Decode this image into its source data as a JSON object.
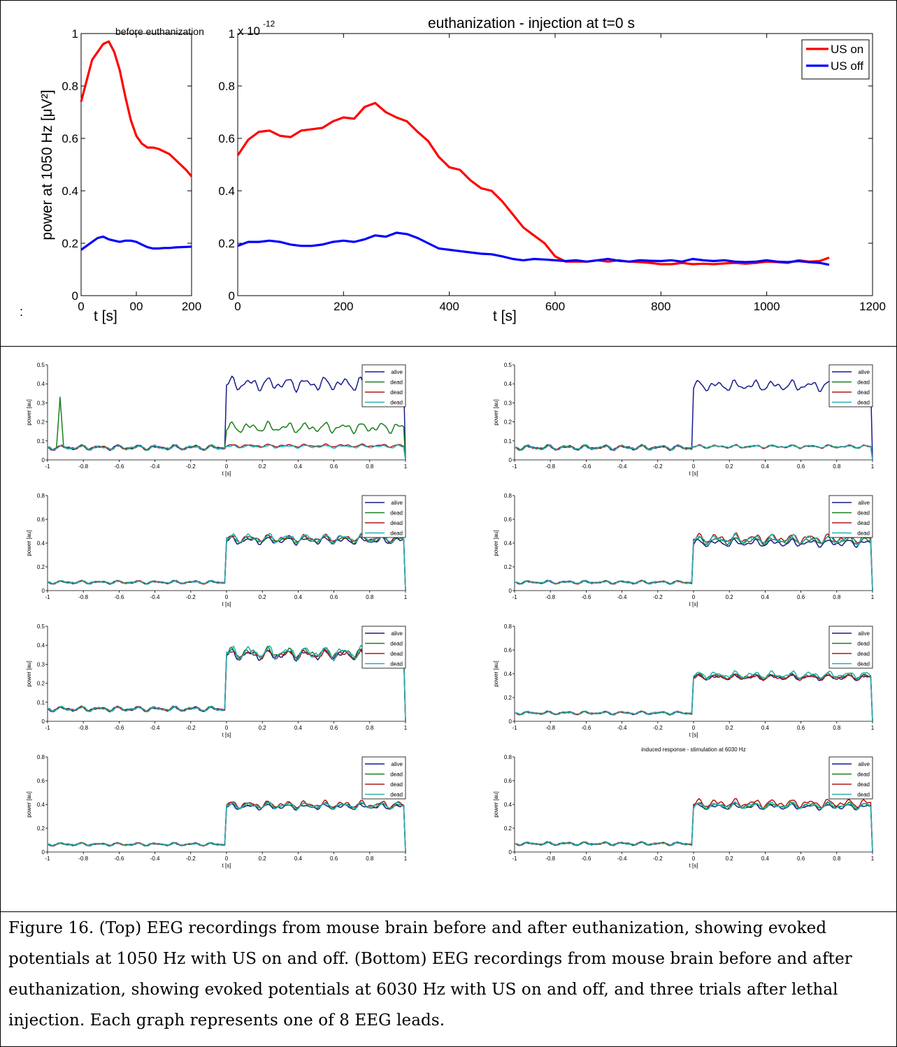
{
  "caption": "Figure 16. (Top) EEG recordings from mouse brain before and after euthanization, showing evoked potentials at 1050 Hz with US on and off. (Bottom) EEG recordings from mouse brain before and after euthanization, showing evoked potentials at 6030 Hz with US on and off, and three trials after lethal injection. Each graph represents one of 8 EEG leads.",
  "colors": {
    "us_on": "#ff0000",
    "us_off": "#0000ff",
    "alive": "#1a1a8c",
    "dead_green": "#1e7d1e",
    "dead_red": "#b01818",
    "dead_cyan": "#20b0b8"
  },
  "chart_data": [
    {
      "type": "line",
      "title": "before euthanization",
      "ylabel": "power at 1050 Hz [μV²]",
      "xlabel": "t [s]",
      "xlim": [
        0,
        200
      ],
      "ylim": [
        0,
        1
      ],
      "xticks": [
        "0",
        "00",
        "200"
      ],
      "yticks": [
        "0",
        "0.2",
        "0.4",
        "0.6",
        "0.8",
        "1"
      ],
      "exponent_label": "x 10",
      "exponent_power": "-12",
      "stray_mark": ":",
      "series": [
        {
          "color": "#ff0000",
          "x": [
            0,
            10,
            20,
            30,
            40,
            50,
            60,
            70,
            80,
            90,
            100,
            110,
            120,
            130,
            140,
            150,
            160,
            170,
            180,
            190,
            200
          ],
          "y": [
            0.74,
            0.82,
            0.9,
            0.93,
            0.96,
            0.97,
            0.93,
            0.86,
            0.76,
            0.67,
            0.61,
            0.58,
            0.565,
            0.565,
            0.56,
            0.55,
            0.54,
            0.52,
            0.5,
            0.48,
            0.455
          ]
        },
        {
          "color": "#0000ff",
          "x": [
            0,
            10,
            20,
            30,
            40,
            50,
            60,
            70,
            80,
            90,
            100,
            110,
            120,
            130,
            140,
            150,
            160,
            170,
            180,
            190,
            200
          ],
          "y": [
            0.175,
            0.19,
            0.205,
            0.22,
            0.225,
            0.215,
            0.21,
            0.205,
            0.21,
            0.21,
            0.205,
            0.195,
            0.185,
            0.18,
            0.18,
            0.182,
            0.182,
            0.184,
            0.185,
            0.186,
            0.187
          ]
        }
      ]
    },
    {
      "type": "line",
      "title": "euthanization - injection at t=0 s",
      "xlabel": "t [s]",
      "xlim": [
        0,
        1200
      ],
      "ylim": [
        0,
        1
      ],
      "xticks": [
        "0",
        "200",
        "400",
        "600",
        "800",
        "1000",
        "1200"
      ],
      "yticks": [
        "0",
        "0.2",
        "0.4",
        "0.6",
        "0.8",
        "1"
      ],
      "legend": "top-right",
      "series": [
        {
          "name": "US on",
          "color": "#ff0000",
          "x": [
            0,
            20,
            40,
            60,
            80,
            100,
            120,
            140,
            160,
            180,
            200,
            220,
            240,
            260,
            280,
            300,
            320,
            340,
            360,
            380,
            400,
            420,
            440,
            460,
            480,
            500,
            520,
            540,
            560,
            580,
            600,
            620,
            640,
            660,
            680,
            700,
            720,
            740,
            760,
            780,
            800,
            820,
            840,
            860,
            880,
            900,
            920,
            940,
            960,
            980,
            1000,
            1020,
            1040,
            1060,
            1080,
            1100,
            1118
          ],
          "y": [
            0.535,
            0.595,
            0.625,
            0.63,
            0.61,
            0.605,
            0.63,
            0.635,
            0.64,
            0.665,
            0.68,
            0.675,
            0.72,
            0.735,
            0.7,
            0.68,
            0.665,
            0.625,
            0.59,
            0.53,
            0.49,
            0.48,
            0.44,
            0.41,
            0.4,
            0.36,
            0.31,
            0.26,
            0.23,
            0.2,
            0.15,
            0.13,
            0.13,
            0.13,
            0.135,
            0.13,
            0.135,
            0.13,
            0.128,
            0.125,
            0.12,
            0.12,
            0.125,
            0.12,
            0.122,
            0.12,
            0.123,
            0.125,
            0.122,
            0.125,
            0.13,
            0.128,
            0.125,
            0.135,
            0.13,
            0.132,
            0.145
          ]
        },
        {
          "name": "US off",
          "color": "#0000ff",
          "x": [
            0,
            20,
            40,
            60,
            80,
            100,
            120,
            140,
            160,
            180,
            200,
            220,
            240,
            260,
            280,
            300,
            320,
            340,
            360,
            380,
            400,
            420,
            440,
            460,
            480,
            500,
            520,
            540,
            560,
            580,
            600,
            620,
            640,
            660,
            680,
            700,
            720,
            740,
            760,
            780,
            800,
            820,
            840,
            860,
            880,
            900,
            920,
            940,
            960,
            980,
            1000,
            1020,
            1040,
            1060,
            1080,
            1100,
            1118
          ],
          "y": [
            0.19,
            0.205,
            0.205,
            0.21,
            0.205,
            0.195,
            0.19,
            0.19,
            0.195,
            0.205,
            0.21,
            0.205,
            0.215,
            0.23,
            0.225,
            0.24,
            0.235,
            0.22,
            0.2,
            0.18,
            0.175,
            0.17,
            0.165,
            0.16,
            0.158,
            0.15,
            0.14,
            0.135,
            0.14,
            0.138,
            0.135,
            0.132,
            0.135,
            0.13,
            0.135,
            0.14,
            0.133,
            0.13,
            0.135,
            0.133,
            0.132,
            0.135,
            0.13,
            0.14,
            0.135,
            0.132,
            0.135,
            0.13,
            0.128,
            0.13,
            0.135,
            0.13,
            0.128,
            0.132,
            0.128,
            0.125,
            0.118
          ]
        }
      ]
    },
    {
      "type": "line",
      "xlabel": "t [s]",
      "ylabel": "power [au]",
      "xlim": [
        -1,
        1
      ],
      "ylim": [
        0,
        0.5
      ],
      "yticks": [
        "0",
        "0.1",
        "0.2",
        "0.3",
        "0.4",
        "0.5"
      ],
      "xticks": [
        "-1",
        "-0.8",
        "-0.6",
        "-0.4",
        "-0.2",
        "0",
        "0.2",
        "0.4",
        "0.6",
        "0.8",
        "1"
      ],
      "legend": "top-right",
      "series": [
        {
          "name": "alive",
          "color": "#1a1a8c",
          "baseline": 0.065,
          "plateau": 0.4,
          "amp": 0.045
        },
        {
          "name": "dead",
          "color": "#1e7d1e",
          "baseline": 0.065,
          "plateau": 0.17,
          "amp": 0.035,
          "spike": [
            -0.93,
            0.33
          ]
        },
        {
          "name": "dead",
          "color": "#b01818",
          "baseline": 0.065,
          "plateau": 0.075,
          "amp": 0.01
        },
        {
          "name": "dead",
          "color": "#20b0b8",
          "baseline": 0.065,
          "plateau": 0.07,
          "amp": 0.01
        }
      ]
    },
    {
      "type": "line",
      "xlabel": "t [s]",
      "ylabel": "power [au]",
      "xlim": [
        -1,
        1
      ],
      "ylim": [
        0,
        0.5
      ],
      "yticks": [
        "0",
        "0.1",
        "0.2",
        "0.3",
        "0.4",
        "0.5"
      ],
      "xticks": [
        "-1",
        "-0.8",
        "-0.6",
        "-0.4",
        "-0.2",
        "0",
        "0.2",
        "0.4",
        "0.6",
        "0.8",
        "1"
      ],
      "legend": "top-right",
      "series": [
        {
          "name": "alive",
          "color": "#1a1a8c",
          "baseline": 0.065,
          "plateau": 0.39,
          "amp": 0.035
        },
        {
          "name": "dead",
          "color": "#1e7d1e",
          "baseline": 0.065,
          "plateau": 0.07,
          "amp": 0.01
        },
        {
          "name": "dead",
          "color": "#b01818",
          "baseline": 0.065,
          "plateau": 0.07,
          "amp": 0.012
        },
        {
          "name": "dead",
          "color": "#20b0b8",
          "baseline": 0.065,
          "plateau": 0.07,
          "amp": 0.01
        }
      ]
    },
    {
      "type": "line",
      "xlabel": "t [s]",
      "ylabel": "power [au]",
      "xlim": [
        -1,
        1
      ],
      "ylim": [
        0,
        0.8
      ],
      "yticks": [
        "0",
        "0.2",
        "0.4",
        "0.6",
        "0.8"
      ],
      "xticks": [
        "-1",
        "-0.8",
        "-0.6",
        "-0.4",
        "-0.2",
        "0",
        "0.2",
        "0.4",
        "0.6",
        "0.8",
        "1"
      ],
      "legend": "top-right",
      "series": [
        {
          "name": "alive",
          "color": "#1a1a8c",
          "baseline": 0.07,
          "plateau": 0.42,
          "amp": 0.04
        },
        {
          "name": "dead",
          "color": "#1e7d1e",
          "baseline": 0.07,
          "plateau": 0.43,
          "amp": 0.04
        },
        {
          "name": "dead",
          "color": "#b01818",
          "baseline": 0.07,
          "plateau": 0.44,
          "amp": 0.04
        },
        {
          "name": "dead",
          "color": "#20b0b8",
          "baseline": 0.07,
          "plateau": 0.44,
          "amp": 0.05
        }
      ]
    },
    {
      "type": "line",
      "xlabel": "t [s]",
      "ylabel": "power [au]",
      "xlim": [
        -1,
        1
      ],
      "ylim": [
        0,
        0.8
      ],
      "yticks": [
        "0",
        "0.2",
        "0.4",
        "0.6",
        "0.8"
      ],
      "xticks": [
        "-1",
        "-0.8",
        "-0.6",
        "-0.4",
        "-0.2",
        "0",
        "0.2",
        "0.4",
        "0.6",
        "0.8",
        "1"
      ],
      "legend": "top-right",
      "series": [
        {
          "name": "alive",
          "color": "#1a1a8c",
          "baseline": 0.07,
          "plateau": 0.4,
          "amp": 0.04
        },
        {
          "name": "dead",
          "color": "#1e7d1e",
          "baseline": 0.07,
          "plateau": 0.42,
          "amp": 0.04
        },
        {
          "name": "dead",
          "color": "#b01818",
          "baseline": 0.07,
          "plateau": 0.44,
          "amp": 0.05
        },
        {
          "name": "dead",
          "color": "#20b0b8",
          "baseline": 0.07,
          "plateau": 0.43,
          "amp": 0.05
        }
      ]
    },
    {
      "type": "line",
      "xlabel": "t [s]",
      "ylabel": "power [au]",
      "xlim": [
        -1,
        1
      ],
      "ylim": [
        0,
        0.5
      ],
      "yticks": [
        "0",
        "0.1",
        "0.2",
        "0.3",
        "0.4",
        "0.5"
      ],
      "xticks": [
        "-1",
        "-0.8",
        "-0.6",
        "-0.4",
        "-0.2",
        "0",
        "0.2",
        "0.4",
        "0.6",
        "0.8",
        "1"
      ],
      "legend": "top-right",
      "series": [
        {
          "name": "alive",
          "color": "#1a1a8c",
          "baseline": 0.065,
          "plateau": 0.35,
          "amp": 0.035
        },
        {
          "name": "dead",
          "color": "#1e7d1e",
          "baseline": 0.065,
          "plateau": 0.36,
          "amp": 0.035
        },
        {
          "name": "dead",
          "color": "#b01818",
          "baseline": 0.065,
          "plateau": 0.35,
          "amp": 0.03
        },
        {
          "name": "dead",
          "color": "#20b0b8",
          "baseline": 0.065,
          "plateau": 0.36,
          "amp": 0.045
        }
      ]
    },
    {
      "type": "line",
      "xlabel": "t [s]",
      "ylabel": "power [au]",
      "xlim": [
        -1,
        1
      ],
      "ylim": [
        0,
        0.8
      ],
      "yticks": [
        "0",
        "0.2",
        "0.4",
        "0.6",
        "0.8"
      ],
      "xticks": [
        "-1",
        "-0.8",
        "-0.6",
        "-0.4",
        "-0.2",
        "0",
        "0.2",
        "0.4",
        "0.6",
        "0.8",
        "1"
      ],
      "legend": "top-right",
      "series": [
        {
          "name": "alive",
          "color": "#1a1a8c",
          "baseline": 0.07,
          "plateau": 0.37,
          "amp": 0.03
        },
        {
          "name": "dead",
          "color": "#1e7d1e",
          "baseline": 0.07,
          "plateau": 0.38,
          "amp": 0.03
        },
        {
          "name": "dead",
          "color": "#b01818",
          "baseline": 0.07,
          "plateau": 0.37,
          "amp": 0.03
        },
        {
          "name": "dead",
          "color": "#20b0b8",
          "baseline": 0.07,
          "plateau": 0.39,
          "amp": 0.04
        }
      ]
    },
    {
      "type": "line",
      "xlabel": "t [s]",
      "ylabel": "power [au]",
      "xlim": [
        -1,
        1
      ],
      "ylim": [
        0,
        0.8
      ],
      "yticks": [
        "0",
        "0.2",
        "0.4",
        "0.6",
        "0.8"
      ],
      "xticks": [
        "-1",
        "-0.8",
        "-0.6",
        "-0.4",
        "-0.2",
        "0",
        "0.2",
        "0.4",
        "0.6",
        "0.8",
        "1"
      ],
      "legend": "top-right",
      "series": [
        {
          "name": "alive",
          "color": "#1a1a8c",
          "baseline": 0.065,
          "plateau": 0.38,
          "amp": 0.03
        },
        {
          "name": "dead",
          "color": "#1e7d1e",
          "baseline": 0.065,
          "plateau": 0.39,
          "amp": 0.035
        },
        {
          "name": "dead",
          "color": "#b01818",
          "baseline": 0.065,
          "plateau": 0.4,
          "amp": 0.04
        },
        {
          "name": "dead",
          "color": "#20b0b8",
          "baseline": 0.065,
          "plateau": 0.39,
          "amp": 0.035
        }
      ]
    },
    {
      "type": "line",
      "title": "induced response - stimulation at 6030 Hz",
      "xlabel": "t [s]",
      "ylabel": "power [au]",
      "xlim": [
        -1,
        1
      ],
      "ylim": [
        0,
        0.8
      ],
      "yticks": [
        "0",
        "0.2",
        "0.4",
        "0.6",
        "0.8"
      ],
      "xticks": [
        "-1",
        "-0.8",
        "-0.6",
        "-0.4",
        "-0.2",
        "0",
        "0.2",
        "0.4",
        "0.6",
        "0.8",
        "1"
      ],
      "legend": "top-right",
      "series": [
        {
          "name": "alive",
          "color": "#1a1a8c",
          "baseline": 0.07,
          "plateau": 0.38,
          "amp": 0.03
        },
        {
          "name": "dead",
          "color": "#1e7d1e",
          "baseline": 0.07,
          "plateau": 0.39,
          "amp": 0.035
        },
        {
          "name": "dead",
          "color": "#b01818",
          "baseline": 0.07,
          "plateau": 0.41,
          "amp": 0.045
        },
        {
          "name": "dead",
          "color": "#20b0b8",
          "baseline": 0.07,
          "plateau": 0.39,
          "amp": 0.035
        }
      ]
    }
  ]
}
